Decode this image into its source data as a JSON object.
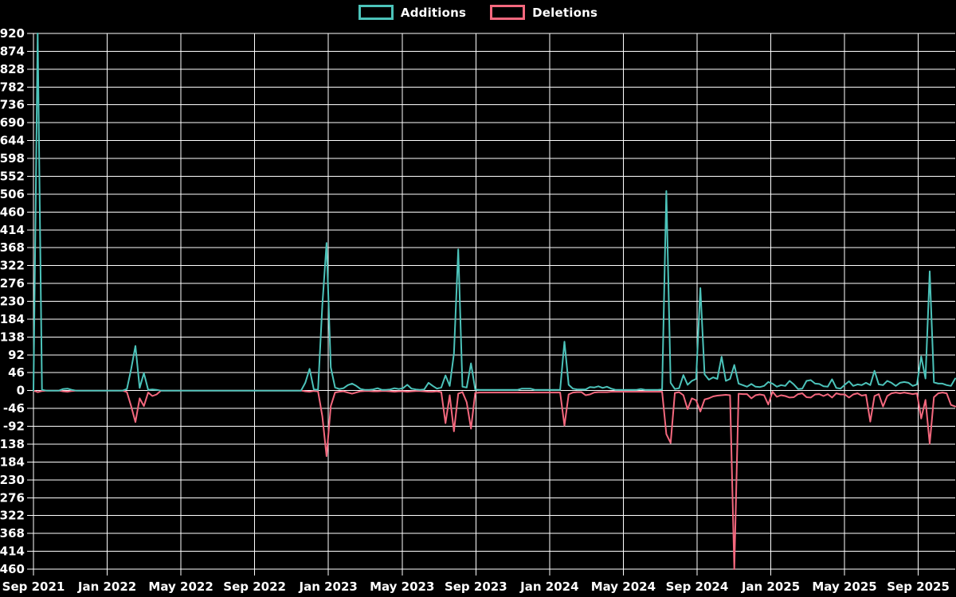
{
  "legend": {
    "additions_label": "Additions",
    "deletions_label": "Deletions"
  },
  "colors": {
    "background": "#000000",
    "grid": "#ffffff",
    "text": "#ffffff",
    "additions": "#4cc3ba",
    "deletions": "#f4687e"
  },
  "axes": {
    "y_ticks": [
      920,
      874,
      828,
      782,
      736,
      690,
      644,
      598,
      552,
      506,
      460,
      414,
      368,
      322,
      276,
      230,
      184,
      138,
      92,
      46,
      0,
      -46,
      -92,
      -138,
      -184,
      -230,
      -276,
      -322,
      -368,
      -414,
      -460
    ],
    "x_ticks": [
      "Sep 2021",
      "Jan 2022",
      "May 2022",
      "Sep 2022",
      "Jan 2023",
      "May 2023",
      "Sep 2023",
      "Jan 2024",
      "May 2024",
      "Sep 2024",
      "Jan 2025",
      "May 2025",
      "Sep 2025"
    ]
  },
  "chart_data": {
    "type": "line",
    "title": "",
    "xlabel": "",
    "ylabel": "",
    "x_unit": "week",
    "x_start": "Sep 2021",
    "x_end": "Nov 2025",
    "ylim": [
      -460,
      920
    ],
    "y_tick_step": 46,
    "grid": true,
    "legend_position": "top-center",
    "series": [
      {
        "name": "Additions",
        "color": "#4cc3ba",
        "values": [
          0,
          920,
          2,
          0,
          0,
          0,
          0,
          4,
          5,
          2,
          0,
          0,
          0,
          0,
          0,
          0,
          0,
          0,
          0,
          0,
          0,
          0,
          4,
          55,
          115,
          7,
          45,
          2,
          3,
          2,
          0,
          0,
          0,
          0,
          0,
          0,
          0,
          0,
          0,
          0,
          0,
          0,
          0,
          0,
          0,
          0,
          0,
          0,
          0,
          0,
          0,
          0,
          0,
          0,
          0,
          0,
          0,
          0,
          0,
          0,
          0,
          0,
          0,
          0,
          20,
          56,
          3,
          2,
          220,
          380,
          60,
          8,
          4,
          6,
          14,
          18,
          12,
          4,
          2,
          2,
          3,
          6,
          2,
          2,
          3,
          6,
          4,
          6,
          15,
          5,
          3,
          2,
          3,
          20,
          12,
          5,
          8,
          39,
          12,
          95,
          364,
          10,
          8,
          70,
          3,
          2,
          2,
          2,
          2,
          2,
          2,
          2,
          2,
          2,
          2,
          5,
          5,
          5,
          2,
          2,
          2,
          2,
          2,
          2,
          2,
          126,
          15,
          5,
          3,
          3,
          3,
          9,
          8,
          11,
          7,
          10,
          5,
          2,
          2,
          2,
          2,
          2,
          2,
          4,
          2,
          2,
          2,
          2,
          3,
          514,
          20,
          4,
          6,
          40,
          15,
          25,
          30,
          264,
          42,
          28,
          34,
          30,
          87,
          25,
          30,
          66,
          18,
          14,
          10,
          17,
          10,
          9,
          12,
          22,
          18,
          10,
          14,
          12,
          25,
          16,
          4,
          5,
          25,
          27,
          18,
          17,
          11,
          10,
          29,
          7,
          5,
          15,
          24,
          12,
          16,
          14,
          20,
          14,
          51,
          16,
          14,
          25,
          20,
          12,
          20,
          22,
          20,
          12,
          16,
          88,
          31,
          307,
          21,
          18,
          18,
          14,
          12,
          31
        ]
      },
      {
        "name": "Deletions",
        "color": "#f4687e",
        "values": [
          0,
          -4,
          -1,
          0,
          0,
          0,
          0,
          -2,
          -3,
          -1,
          0,
          0,
          0,
          0,
          0,
          0,
          0,
          0,
          0,
          0,
          0,
          0,
          -4,
          -40,
          -81,
          -20,
          -40,
          -5,
          -14,
          -10,
          0,
          0,
          0,
          0,
          0,
          0,
          0,
          0,
          0,
          0,
          0,
          0,
          0,
          0,
          0,
          0,
          0,
          0,
          0,
          0,
          0,
          0,
          0,
          0,
          0,
          0,
          0,
          0,
          0,
          0,
          0,
          0,
          0,
          0,
          -2,
          -3,
          -1,
          -2,
          -66,
          -169,
          -40,
          -5,
          -3,
          -2,
          -5,
          -8,
          -5,
          -2,
          -1,
          -1,
          -2,
          -2,
          -1,
          -1,
          -2,
          -3,
          -2,
          -2,
          -3,
          -2,
          -1,
          -1,
          -2,
          -3,
          -3,
          -2,
          -4,
          -84,
          -12,
          -105,
          -8,
          -4,
          -30,
          -98,
          -6,
          -5,
          -5,
          -5,
          -5,
          -5,
          -5,
          -5,
          -5,
          -5,
          -5,
          -5,
          -5,
          -5,
          -5,
          -5,
          -5,
          -5,
          -5,
          -5,
          -5,
          -90,
          -10,
          -5,
          -4,
          -4,
          -12,
          -10,
          -5,
          -4,
          -4,
          -4,
          -3,
          -3,
          -3,
          -3,
          -3,
          -3,
          -3,
          -3,
          -3,
          -3,
          -3,
          -3,
          -3,
          -112,
          -135,
          -6,
          -4,
          -12,
          -48,
          -20,
          -25,
          -54,
          -23,
          -20,
          -15,
          -13,
          -12,
          -11,
          -12,
          -460,
          -8,
          -9,
          -9,
          -20,
          -12,
          -10,
          -12,
          -36,
          -3,
          -16,
          -12,
          -14,
          -18,
          -17,
          -9,
          -7,
          -17,
          -18,
          -10,
          -9,
          -14,
          -9,
          -18,
          -7,
          -10,
          -10,
          -18,
          -10,
          -7,
          -13,
          -11,
          -80,
          -14,
          -9,
          -41,
          -14,
          -7,
          -5,
          -7,
          -5,
          -7,
          -9,
          -7,
          -72,
          -24,
          -137,
          -17,
          -7,
          -5,
          -7,
          -37,
          -41
        ]
      }
    ]
  }
}
